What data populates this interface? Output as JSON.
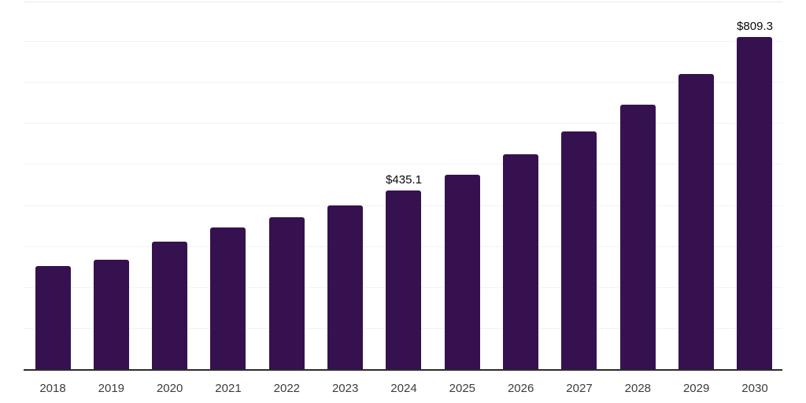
{
  "chart_data": {
    "type": "bar",
    "title": "",
    "xlabel": "",
    "ylabel": "",
    "categories": [
      "2018",
      "2019",
      "2020",
      "2021",
      "2022",
      "2023",
      "2024",
      "2025",
      "2026",
      "2027",
      "2028",
      "2029",
      "2030"
    ],
    "values": [
      252,
      267,
      310,
      346,
      371,
      400,
      435.1,
      474,
      524,
      580,
      645,
      720,
      809.3
    ],
    "data_labels": [
      "",
      "",
      "",
      "",
      "",
      "",
      "$435.1",
      "",
      "",
      "",
      "",
      "",
      "$809.3"
    ],
    "ylim": [
      0,
      900
    ],
    "gridline_interval": 100,
    "grid": true,
    "legend": false,
    "colors": {
      "bar": "#361150",
      "gridline": "#f2f2f2",
      "top_border": "#e8e8e8",
      "axis_line": "#2b2b2b",
      "value_label_text": "#0a0a0a",
      "tick_label_text": "#3c3c3c",
      "background": "#ffffff"
    }
  }
}
